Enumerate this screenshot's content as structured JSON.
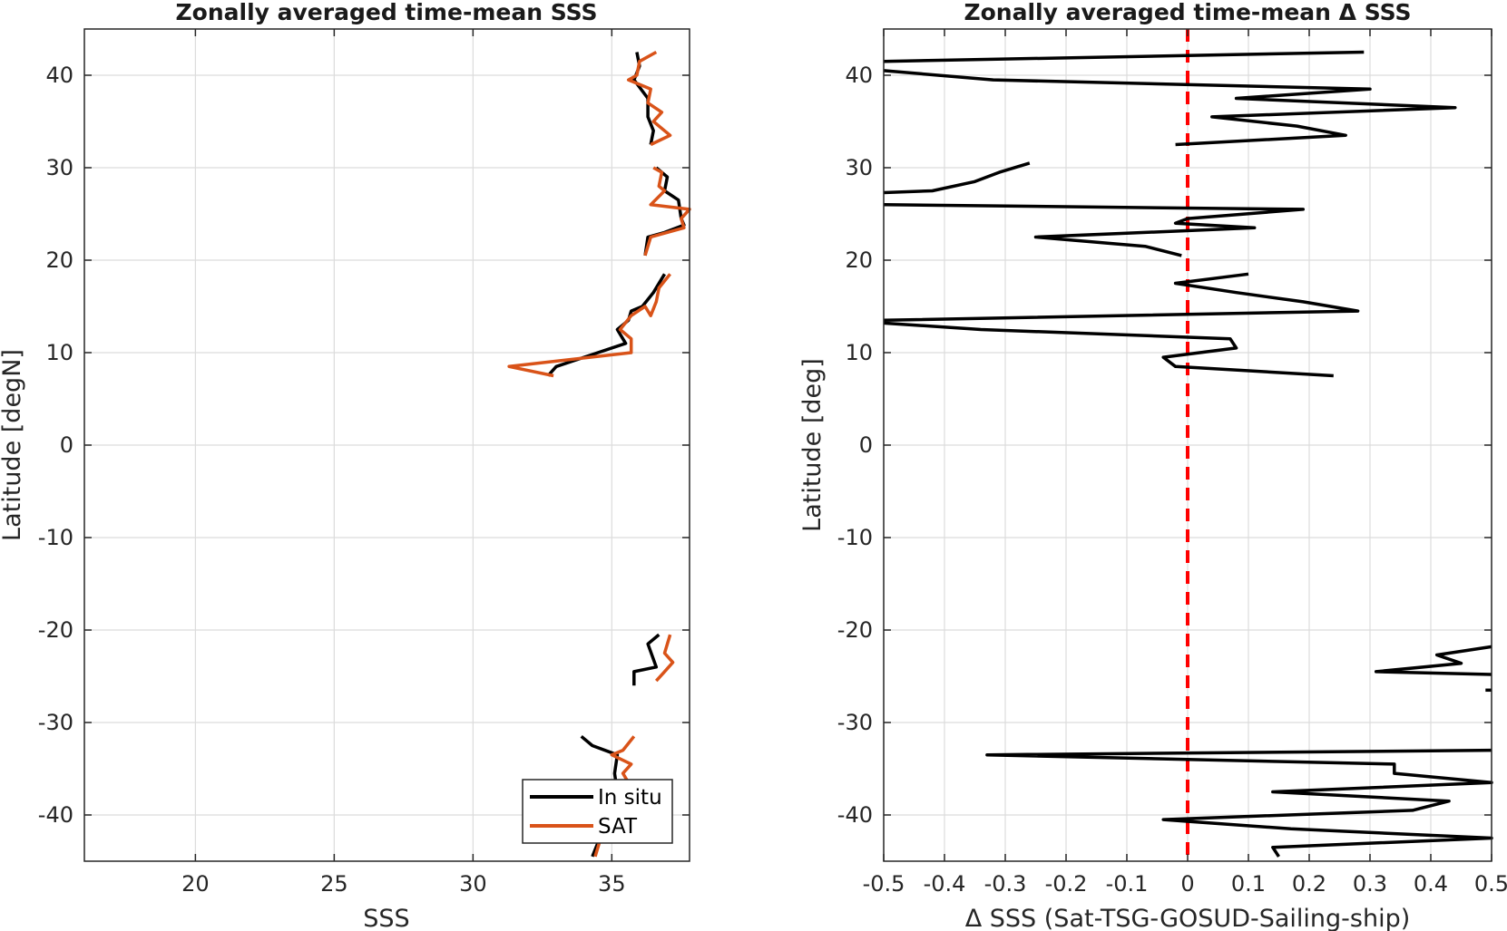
{
  "chart_data": [
    {
      "type": "line",
      "title": "Zonally averaged time-mean SSS",
      "xlabel": "SSS",
      "ylabel": "Latitude [degN]",
      "xlim": [
        16,
        37.8
      ],
      "ylim": [
        -45,
        45
      ],
      "xticks": [
        20,
        25,
        30,
        35
      ],
      "yticks": [
        -40,
        -30,
        -20,
        -10,
        0,
        10,
        20,
        30,
        40
      ],
      "grid": true,
      "legend": {
        "position": "bottom-right"
      },
      "series": [
        {
          "name": "In situ",
          "color": "#000000",
          "segments": [
            [
              [
                35.9,
                42.5
              ],
              [
                36.0,
                41.0
              ],
              [
                35.8,
                39.5
              ],
              [
                36.3,
                37.5
              ],
              [
                36.3,
                35.5
              ],
              [
                36.5,
                34.0
              ],
              [
                36.4,
                32.5
              ]
            ],
            [
              [
                36.6,
                30.0
              ],
              [
                37.0,
                29.0
              ],
              [
                36.9,
                27.5
              ],
              [
                37.4,
                26.5
              ],
              [
                37.5,
                24.5
              ],
              [
                37.6,
                23.8
              ],
              [
                36.9,
                23.0
              ],
              [
                36.3,
                22.5
              ],
              [
                36.2,
                20.5
              ]
            ],
            [
              [
                36.9,
                18.5
              ],
              [
                36.5,
                16.5
              ],
              [
                36.1,
                15.0
              ],
              [
                35.7,
                14.5
              ],
              [
                35.6,
                13.5
              ],
              [
                35.2,
                12.5
              ],
              [
                35.5,
                11.0
              ],
              [
                34.0,
                9.5
              ],
              [
                33.0,
                8.5
              ],
              [
                32.7,
                7.5
              ]
            ],
            [
              [
                36.7,
                -20.5
              ],
              [
                36.3,
                -21.5
              ],
              [
                36.6,
                -24.0
              ],
              [
                35.8,
                -24.5
              ],
              [
                35.8,
                -26.0
              ]
            ],
            [
              [
                33.9,
                -31.5
              ],
              [
                34.3,
                -32.5
              ],
              [
                35.2,
                -33.5
              ],
              [
                35.1,
                -35.5
              ],
              [
                35.2,
                -37.5
              ],
              [
                35.0,
                -39.5
              ],
              [
                35.2,
                -41.0
              ],
              [
                34.8,
                -42.0
              ],
              [
                34.5,
                -43.0
              ],
              [
                34.3,
                -44.5
              ]
            ]
          ]
        },
        {
          "name": "SAT",
          "color": "#D95319",
          "segments": [
            [
              [
                36.6,
                42.5
              ],
              [
                36.0,
                41.5
              ],
              [
                35.9,
                40.0
              ],
              [
                35.6,
                39.5
              ],
              [
                36.4,
                38.5
              ],
              [
                36.3,
                37.0
              ],
              [
                36.8,
                36.0
              ],
              [
                36.5,
                35.0
              ],
              [
                37.1,
                33.5
              ],
              [
                36.4,
                32.5
              ]
            ],
            [
              [
                36.5,
                30.0
              ],
              [
                36.8,
                29.5
              ],
              [
                36.7,
                28.0
              ],
              [
                36.9,
                27.5
              ],
              [
                36.4,
                26.0
              ],
              [
                37.8,
                25.5
              ],
              [
                37.5,
                24.5
              ],
              [
                37.6,
                23.5
              ],
              [
                36.4,
                22.5
              ],
              [
                36.2,
                20.5
              ]
            ],
            [
              [
                37.1,
                18.5
              ],
              [
                36.7,
                17.0
              ],
              [
                36.6,
                15.5
              ],
              [
                36.4,
                14.0
              ],
              [
                36.2,
                15.0
              ],
              [
                35.7,
                14.0
              ],
              [
                35.3,
                12.5
              ],
              [
                35.7,
                11.5
              ],
              [
                35.7,
                10.0
              ],
              [
                31.3,
                8.5
              ],
              [
                32.9,
                7.5
              ]
            ],
            [
              [
                37.1,
                -20.5
              ],
              [
                36.9,
                -22.5
              ],
              [
                37.2,
                -23.5
              ],
              [
                36.9,
                -24.5
              ],
              [
                36.6,
                -25.5
              ]
            ],
            [
              [
                35.8,
                -31.5
              ],
              [
                35.4,
                -33.0
              ],
              [
                35.0,
                -33.5
              ],
              [
                35.7,
                -34.5
              ],
              [
                35.4,
                -35.5
              ],
              [
                35.6,
                -36.5
              ],
              [
                35.5,
                -37.5
              ],
              [
                35.3,
                -39.0
              ],
              [
                35.0,
                -41.0
              ],
              [
                34.6,
                -42.5
              ],
              [
                34.4,
                -44.5
              ]
            ]
          ]
        }
      ]
    },
    {
      "type": "line",
      "title": "Zonally averaged time-mean Δ SSS",
      "xlabel": "Δ SSS (Sat-TSG-GOSUD-Sailing-ship)",
      "ylabel": "Latitude [deg]",
      "xlim": [
        -0.5,
        0.5
      ],
      "ylim": [
        -45,
        45
      ],
      "xticks": [
        -0.5,
        -0.4,
        -0.3,
        -0.2,
        -0.1,
        0,
        0.1,
        0.2,
        0.3,
        0.4,
        0.5
      ],
      "yticks": [
        -40,
        -30,
        -20,
        -10,
        0,
        10,
        20,
        30,
        40
      ],
      "grid": true,
      "reference_line": {
        "x": 0,
        "color": "#FF0000",
        "style": "dashed"
      },
      "series": [
        {
          "color": "#000000",
          "segments": [
            [
              [
                0.29,
                42.5
              ],
              [
                -0.5,
                41.5
              ]
            ],
            [
              [
                -0.5,
                40.5
              ],
              [
                -0.32,
                39.5
              ],
              [
                0.3,
                38.5
              ],
              [
                0.08,
                37.5
              ],
              [
                0.44,
                36.5
              ],
              [
                0.04,
                35.5
              ],
              [
                0.18,
                34.5
              ],
              [
                0.26,
                33.5
              ],
              [
                -0.02,
                32.5
              ]
            ],
            [
              [
                -0.26,
                30.5
              ],
              [
                -0.31,
                29.5
              ],
              [
                -0.35,
                28.5
              ],
              [
                -0.42,
                27.5
              ],
              [
                -0.5,
                27.3
              ]
            ],
            [
              [
                -0.5,
                26.0
              ],
              [
                0.19,
                25.5
              ],
              [
                0.0,
                24.5
              ],
              [
                -0.02,
                24.0
              ],
              [
                0.11,
                23.5
              ],
              [
                -0.25,
                22.5
              ],
              [
                -0.07,
                21.5
              ],
              [
                -0.01,
                20.5
              ]
            ],
            [
              [
                0.1,
                18.5
              ],
              [
                -0.02,
                17.5
              ],
              [
                0.08,
                16.5
              ],
              [
                0.19,
                15.5
              ],
              [
                0.28,
                14.5
              ],
              [
                -0.5,
                13.5
              ]
            ],
            [
              [
                -0.5,
                13.2
              ],
              [
                -0.34,
                12.5
              ],
              [
                0.07,
                11.5
              ],
              [
                0.08,
                10.5
              ],
              [
                -0.04,
                9.5
              ],
              [
                -0.02,
                8.5
              ],
              [
                0.24,
                7.5
              ]
            ],
            [
              [
                0.5,
                -21.8
              ],
              [
                0.41,
                -22.7
              ],
              [
                0.45,
                -23.6
              ],
              [
                0.31,
                -24.5
              ],
              [
                0.5,
                -24.8
              ]
            ],
            [
              [
                0.49,
                -26.5
              ],
              [
                0.5,
                -26.5
              ]
            ],
            [
              [
                0.5,
                -33.0
              ],
              [
                -0.33,
                -33.5
              ],
              [
                0.34,
                -34.5
              ],
              [
                0.34,
                -35.5
              ],
              [
                0.5,
                -36.5
              ],
              [
                0.14,
                -37.5
              ],
              [
                0.43,
                -38.5
              ],
              [
                0.37,
                -39.5
              ],
              [
                -0.04,
                -40.5
              ],
              [
                0.17,
                -41.5
              ],
              [
                0.5,
                -42.5
              ],
              [
                0.14,
                -43.5
              ],
              [
                0.15,
                -44.5
              ]
            ]
          ]
        }
      ]
    }
  ]
}
